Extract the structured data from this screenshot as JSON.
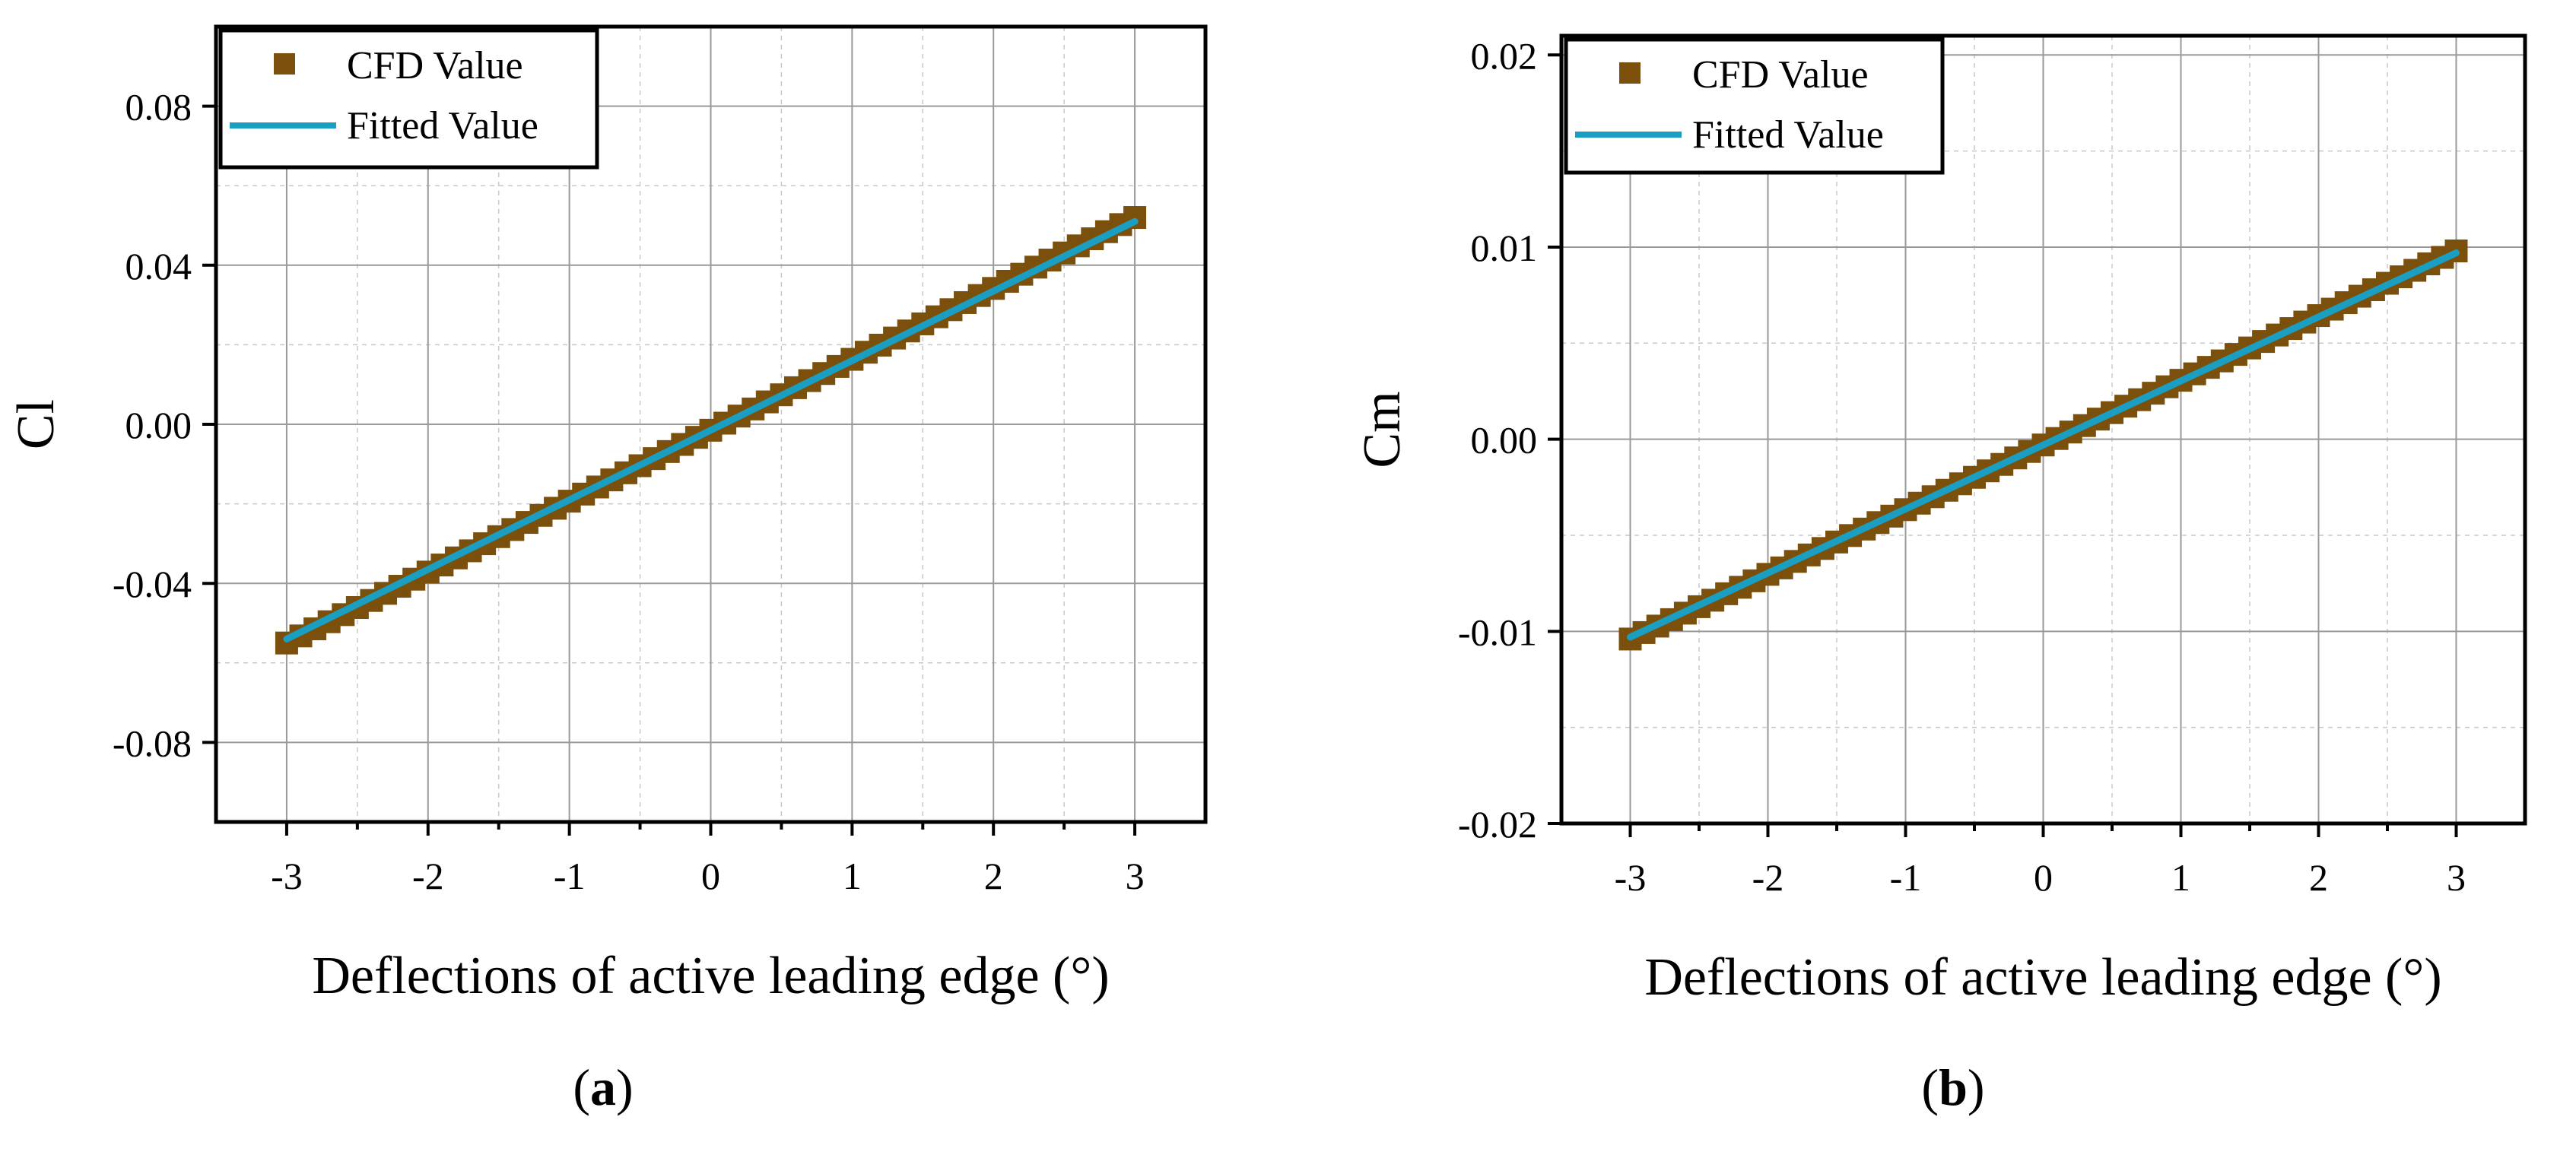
{
  "chart_data": [
    {
      "type": "scatter",
      "panel_label": "a",
      "title": "",
      "xlabel": "Deflections of active leading edge (°)",
      "ylabel": "Cl",
      "xlim": [
        -3.5,
        3.5
      ],
      "ylim": [
        -0.1,
        0.1
      ],
      "x_ticks": [
        -3,
        -2,
        -1,
        0,
        1,
        2,
        3
      ],
      "x_tick_labels": [
        "-3",
        "-2",
        "-1",
        "0",
        "1",
        "2",
        "3"
      ],
      "y_ticks": [
        -0.08,
        -0.04,
        0.0,
        0.04,
        0.08
      ],
      "y_tick_labels": [
        "-0.08",
        "-0.04",
        "0.00",
        "0.04",
        "0.08"
      ],
      "grid": true,
      "legend_position": "top-left",
      "series": [
        {
          "name": "CFD Value",
          "kind": "markers",
          "color": "#7b4f0c",
          "x_start": -3,
          "x_end": 3,
          "count": 61,
          "y_at_start": -0.055,
          "y_at_end": 0.052
        },
        {
          "name": "Fitted Value",
          "kind": "line",
          "color": "#1a9fc2",
          "x": [
            -3,
            3
          ],
          "y": [
            -0.054,
            0.051
          ]
        }
      ]
    },
    {
      "type": "scatter",
      "panel_label": "b",
      "title": "",
      "xlabel": "Deflections of active leading edge (°)",
      "ylabel": "Cm",
      "xlim": [
        -3.5,
        3.5
      ],
      "ylim": [
        -0.02,
        0.021
      ],
      "x_ticks": [
        -3,
        -2,
        -1,
        0,
        1,
        2,
        3
      ],
      "x_tick_labels": [
        "-3",
        "-2",
        "-1",
        "0",
        "1",
        "2",
        "3"
      ],
      "y_ticks": [
        -0.02,
        -0.01,
        0.0,
        0.01,
        0.02
      ],
      "y_tick_labels": [
        "-0.02",
        "-0.01",
        "0.00",
        "0.01",
        "0.02"
      ],
      "grid": true,
      "legend_position": "top-left",
      "series": [
        {
          "name": "CFD Value",
          "kind": "markers",
          "color": "#7b4f0c",
          "x_start": -3,
          "x_end": 3,
          "count": 61,
          "y_at_start": -0.0104,
          "y_at_end": 0.0098
        },
        {
          "name": "Fitted Value",
          "kind": "line",
          "color": "#1a9fc2",
          "x": [
            -3,
            3
          ],
          "y": [
            -0.0103,
            0.0097
          ]
        }
      ]
    }
  ],
  "captions": [
    {
      "open": "(",
      "letter": "a",
      "close": ")"
    },
    {
      "open": "(",
      "letter": "b",
      "close": ")"
    }
  ]
}
